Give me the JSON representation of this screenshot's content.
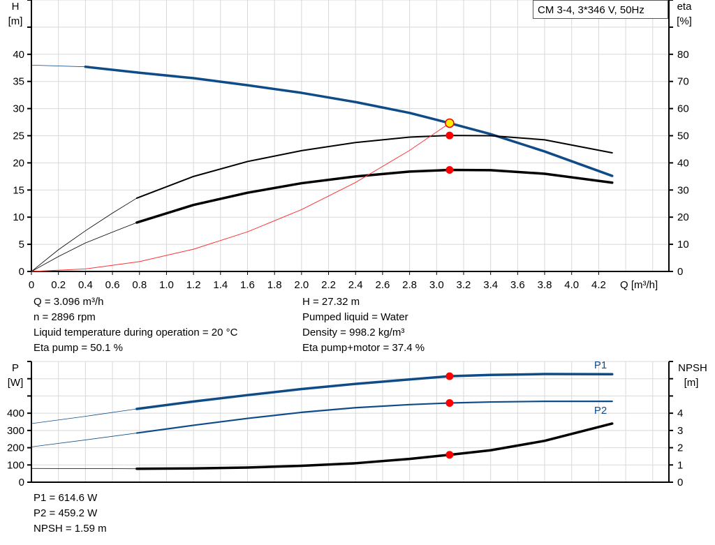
{
  "legend_title": "CM 3-4, 3*346 V, 50Hz",
  "colors": {
    "head": "#0f4c87",
    "eta": "#000000",
    "system": "#ff3030",
    "power": "#0f4c87",
    "npsh": "#000000",
    "duty_point": "#ff0000",
    "duty_point_head": "#ffee00",
    "grid": "#d8d8d8"
  },
  "info_top": {
    "left": [
      "Q = 3.096 m³/h",
      "n = 2896 rpm",
      "Liquid temperature during operation = 20 °C",
      "Eta pump = 50.1 %"
    ],
    "right": [
      "H = 27.32 m",
      "Pumped liquid = Water",
      "Density = 998.2 kg/m³",
      "Eta pump+motor = 37.4 %"
    ]
  },
  "info_bottom": [
    "P1 = 614.6 W",
    "P2 = 459.2 W",
    "NPSH = 1.59 m"
  ],
  "chart_data": [
    {
      "type": "line",
      "xlabel": "Q [m³/h]",
      "ylabel": "H",
      "ylabel_unit": "[m]",
      "y2label": "eta",
      "y2label_unit": "[%]",
      "xlim": [
        0,
        4.72
      ],
      "ylim": [
        0,
        50
      ],
      "y2lim": [
        0,
        100
      ],
      "xticks": [
        "0",
        "0.2",
        "0.4",
        "0.6",
        "0.8",
        "1.0",
        "1.2",
        "1.4",
        "1.6",
        "1.8",
        "2.0",
        "2.2",
        "2.4",
        "2.6",
        "2.8",
        "3.0",
        "3.2",
        "3.4",
        "3.6",
        "3.8",
        "4.0",
        "4.2"
      ],
      "yticks": [
        "0",
        "5",
        "10",
        "15",
        "20",
        "25",
        "30",
        "35",
        "40"
      ],
      "y2ticks": [
        "0",
        "10",
        "20",
        "30",
        "40",
        "50",
        "60",
        "70",
        "80"
      ],
      "grid": true,
      "series": [
        {
          "key": "head",
          "axis": "left",
          "thick_from": 0.78,
          "x": [
            0,
            0.4,
            0.8,
            1.2,
            1.6,
            2.0,
            2.4,
            2.8,
            3.096,
            3.4,
            3.8,
            4.3
          ],
          "y": [
            38,
            37.7,
            36.6,
            35.6,
            34.3,
            32.9,
            31.2,
            29.2,
            27.32,
            25.3,
            22.1,
            17.6
          ]
        },
        {
          "key": "eta_pump",
          "axis": "right",
          "thick_from": 0.78,
          "x": [
            0,
            0.2,
            0.4,
            0.6,
            0.78,
            1.2,
            1.6,
            2.0,
            2.4,
            2.8,
            3.096,
            3.4,
            3.8,
            4.3
          ],
          "y": [
            0,
            8,
            15,
            21.5,
            27,
            35,
            40.5,
            44.5,
            47.5,
            49.5,
            50.1,
            50,
            48.5,
            43.7
          ]
        },
        {
          "key": "eta_pump_motor",
          "axis": "right",
          "thick_from": 0.78,
          "x": [
            0,
            0.2,
            0.4,
            0.6,
            0.78,
            1.2,
            1.6,
            2.0,
            2.4,
            2.8,
            3.096,
            3.4,
            3.8,
            4.3
          ],
          "y": [
            0,
            5.5,
            10.5,
            14.5,
            18,
            24.5,
            29,
            32.5,
            35,
            36.8,
            37.4,
            37.3,
            36,
            32.7
          ]
        },
        {
          "key": "system",
          "axis": "left",
          "thick_from": null,
          "x": [
            0,
            0.4,
            0.8,
            1.2,
            1.6,
            2.0,
            2.4,
            2.8,
            3.096
          ],
          "y": [
            0,
            0.46,
            1.82,
            4.1,
            7.3,
            11.4,
            16.4,
            22.3,
            27.32
          ]
        }
      ],
      "duty_points": [
        {
          "key": "head",
          "x": 3.096,
          "y": 27.32,
          "axis": "left"
        },
        {
          "key": "eta_pump",
          "x": 3.096,
          "y": 50.1,
          "axis": "right"
        },
        {
          "key": "eta_pump_motor",
          "x": 3.096,
          "y": 37.4,
          "axis": "right"
        }
      ]
    },
    {
      "type": "line",
      "ylabel": "P",
      "ylabel_unit": "[W]",
      "y2label": "NPSH",
      "y2label_unit": "[m]",
      "xlim": [
        0,
        4.72
      ],
      "ylim": [
        0,
        700
      ],
      "y2lim": [
        0,
        7
      ],
      "yticks": [
        "0",
        "100",
        "200",
        "300",
        "400"
      ],
      "y2ticks": [
        "0",
        "1",
        "2",
        "3",
        "4"
      ],
      "grid": true,
      "series": [
        {
          "key": "P1",
          "name": "P1",
          "axis": "left",
          "thick_from": 0.78,
          "x": [
            0,
            0.4,
            0.78,
            1.2,
            1.6,
            2.0,
            2.4,
            2.8,
            3.096,
            3.4,
            3.8,
            4.3
          ],
          "y": [
            340,
            382,
            425,
            468,
            505,
            540,
            570,
            596,
            614.6,
            622,
            627,
            626
          ]
        },
        {
          "key": "P2",
          "name": "P2",
          "axis": "left",
          "thick_from": 0.78,
          "x": [
            0,
            0.4,
            0.78,
            1.2,
            1.6,
            2.0,
            2.4,
            2.8,
            3.096,
            3.4,
            3.8,
            4.3
          ],
          "y": [
            205,
            245,
            285,
            330,
            370,
            405,
            432,
            450,
            459.2,
            465,
            469,
            469
          ]
        },
        {
          "key": "npsh",
          "axis": "right",
          "thick_from": 0.78,
          "x": [
            0,
            0.78,
            1.2,
            1.6,
            2.0,
            2.4,
            2.8,
            3.096,
            3.4,
            3.8,
            4.3
          ],
          "y": [
            0.8,
            0.78,
            0.8,
            0.85,
            0.95,
            1.1,
            1.35,
            1.59,
            1.85,
            2.4,
            3.4
          ]
        }
      ],
      "duty_points": [
        {
          "key": "P1",
          "x": 3.096,
          "y": 614.6,
          "axis": "left"
        },
        {
          "key": "P2",
          "x": 3.096,
          "y": 459.2,
          "axis": "left"
        },
        {
          "key": "npsh",
          "x": 3.096,
          "y": 1.59,
          "axis": "right"
        }
      ]
    }
  ]
}
